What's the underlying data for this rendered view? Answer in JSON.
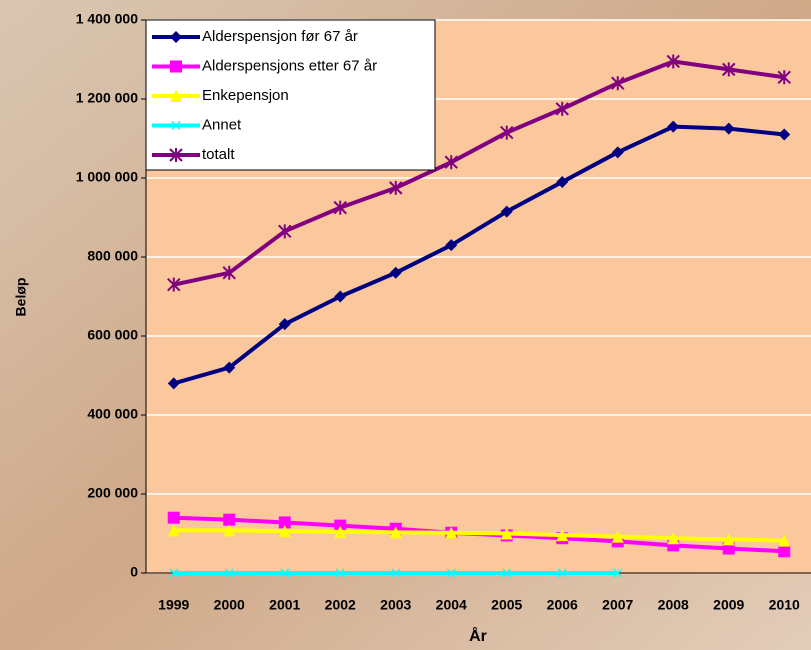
{
  "chart_data": {
    "type": "line",
    "categories": [
      "1999",
      "2000",
      "2001",
      "2002",
      "2003",
      "2004",
      "2005",
      "2006",
      "2007",
      "2008",
      "2009",
      "2010"
    ],
    "series": [
      {
        "name": "Alderspensjon før 67 år",
        "color": "#000080",
        "marker": "diamond",
        "values": [
          480000,
          520000,
          630000,
          700000,
          760000,
          830000,
          915000,
          990000,
          1065000,
          1130000,
          1125000,
          1110000
        ]
      },
      {
        "name": "Alderspensjons etter 67 år",
        "color": "#ff00ff",
        "marker": "square",
        "values": [
          140000,
          135000,
          128000,
          120000,
          112000,
          102000,
          95000,
          88000,
          80000,
          70000,
          62000,
          55000
        ]
      },
      {
        "name": "Enkepensjon",
        "color": "#ffff00",
        "marker": "triangle",
        "values": [
          108000,
          108000,
          106000,
          104000,
          103000,
          102000,
          100000,
          96000,
          92000,
          88000,
          85000,
          82000
        ]
      },
      {
        "name": "Annet",
        "color": "#00ffff",
        "marker": "x",
        "values": [
          0,
          0,
          0,
          0,
          0,
          0,
          0,
          0,
          0,
          null,
          null,
          null
        ]
      },
      {
        "name": "totalt",
        "color": "#800080",
        "marker": "star",
        "values": [
          730000,
          760000,
          865000,
          925000,
          975000,
          1040000,
          1115000,
          1175000,
          1240000,
          1295000,
          1275000,
          1255000
        ]
      }
    ],
    "ylim": [
      0,
      1400000
    ],
    "yticks": [
      0,
      {
        "value": 200000,
        "label": "200 000"
      },
      {
        "value": 400000,
        "label": "400 000"
      },
      {
        "value": 600000,
        "label": "600 000"
      },
      {
        "value": 800000,
        "label": "800 000"
      },
      {
        "value": 1000000,
        "label": "1 000 000"
      },
      {
        "value": 1200000,
        "label": "1 200 000"
      },
      {
        "value": 1400000,
        "label": "1 400 000"
      }
    ],
    "ylabel": "Beløp",
    "xlabel": "År",
    "grid": true,
    "legend": "upper left"
  }
}
